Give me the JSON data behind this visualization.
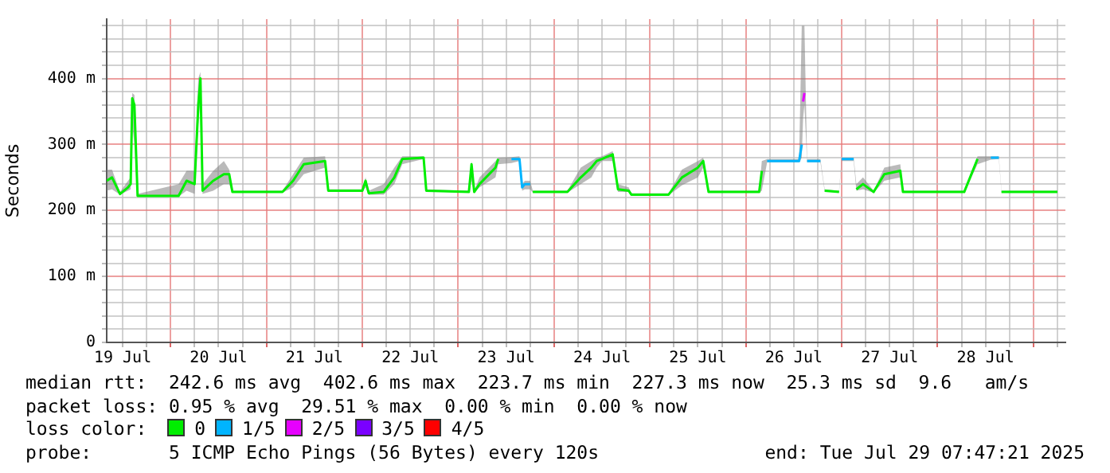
{
  "chart_data": {
    "type": "line",
    "ylabel": "Seconds",
    "legend_title": "loss color:",
    "legend": "bottom",
    "grid": true,
    "line_style": "solid",
    "xlim": [
      "2025-07-19T08:00",
      "2025-07-29T08:00"
    ],
    "xticks": [
      {
        "value": "2025-07-19T12:00",
        "label": "19 Jul"
      },
      {
        "value": "2025-07-19T18:00",
        "label": null
      },
      {
        "value": "2025-07-20T00:00",
        "label": null
      },
      {
        "value": "2025-07-20T06:00",
        "label": null
      },
      {
        "value": "2025-07-20T12:00",
        "label": "20 Jul"
      },
      {
        "value": "2025-07-20T18:00",
        "label": null
      },
      {
        "value": "2025-07-21T00:00",
        "label": null
      },
      {
        "value": "2025-07-21T06:00",
        "label": null
      },
      {
        "value": "2025-07-21T12:00",
        "label": "21 Jul"
      },
      {
        "value": "2025-07-21T18:00",
        "label": null
      },
      {
        "value": "2025-07-22T00:00",
        "label": null
      },
      {
        "value": "2025-07-22T06:00",
        "label": null
      },
      {
        "value": "2025-07-22T12:00",
        "label": "22 Jul"
      },
      {
        "value": "2025-07-22T18:00",
        "label": null
      },
      {
        "value": "2025-07-23T00:00",
        "label": null
      },
      {
        "value": "2025-07-23T06:00",
        "label": null
      },
      {
        "value": "2025-07-23T12:00",
        "label": "23 Jul"
      },
      {
        "value": "2025-07-23T18:00",
        "label": null
      },
      {
        "value": "2025-07-24T00:00",
        "label": null
      },
      {
        "value": "2025-07-24T06:00",
        "label": null
      },
      {
        "value": "2025-07-24T12:00",
        "label": "24 Jul"
      },
      {
        "value": "2025-07-24T18:00",
        "label": null
      },
      {
        "value": "2025-07-25T00:00",
        "label": null
      },
      {
        "value": "2025-07-25T06:00",
        "label": null
      },
      {
        "value": "2025-07-25T12:00",
        "label": "25 Jul"
      },
      {
        "value": "2025-07-25T18:00",
        "label": null
      },
      {
        "value": "2025-07-26T00:00",
        "label": null
      },
      {
        "value": "2025-07-26T06:00",
        "label": null
      },
      {
        "value": "2025-07-26T12:00",
        "label": "26 Jul"
      },
      {
        "value": "2025-07-26T18:00",
        "label": null
      },
      {
        "value": "2025-07-27T00:00",
        "label": null
      },
      {
        "value": "2025-07-27T06:00",
        "label": null
      },
      {
        "value": "2025-07-27T12:00",
        "label": "27 Jul"
      },
      {
        "value": "2025-07-27T18:00",
        "label": null
      },
      {
        "value": "2025-07-28T00:00",
        "label": null
      },
      {
        "value": "2025-07-28T06:00",
        "label": null
      },
      {
        "value": "2025-07-28T12:00",
        "label": "28 Jul"
      },
      {
        "value": "2025-07-28T18:00",
        "label": null
      },
      {
        "value": "2025-07-29T00:00",
        "label": null
      },
      {
        "value": "2025-07-29T06:00",
        "label": null
      }
    ],
    "ylim": [
      0,
      490
    ],
    "yticks": [
      0,
      {
        "value": 20,
        "label": null
      },
      {
        "value": 40,
        "label": null
      },
      {
        "value": 60,
        "label": null
      },
      {
        "value": 80,
        "label": null
      },
      {
        "value": 100,
        "label": "100 m"
      },
      {
        "value": 120,
        "label": null
      },
      {
        "value": 140,
        "label": null
      },
      {
        "value": 160,
        "label": null
      },
      {
        "value": 180,
        "label": null
      },
      {
        "value": 200,
        "label": "200 m"
      },
      {
        "value": 220,
        "label": null
      },
      {
        "value": 240,
        "label": null
      },
      {
        "value": 260,
        "label": null
      },
      {
        "value": 280,
        "label": null
      },
      {
        "value": 300,
        "label": "300 m"
      },
      {
        "value": 320,
        "label": null
      },
      {
        "value": 340,
        "label": null
      },
      {
        "value": 360,
        "label": null
      },
      {
        "value": 380,
        "label": null
      },
      {
        "value": 400,
        "label": "400 m"
      },
      {
        "value": 420,
        "label": null
      },
      {
        "value": 440,
        "label": null
      },
      {
        "value": 460,
        "label": null
      },
      {
        "value": 480,
        "label": null
      }
    ],
    "x": [
      "2025-07-19T08:00",
      "2025-07-19T09:20",
      "2025-07-19T11:20",
      "2025-07-19T13:20",
      "2025-07-19T14:00",
      "2025-07-19T14:24",
      "2025-07-19T14:56",
      "2025-07-19T15:44",
      "2025-07-20T02:00",
      "2025-07-20T04:00",
      "2025-07-20T06:00",
      "2025-07-20T06:56",
      "2025-07-20T07:28",
      "2025-07-20T08:00",
      "2025-07-20T10:40",
      "2025-07-20T13:20",
      "2025-07-20T14:40",
      "2025-07-20T15:28",
      "2025-07-21T04:00",
      "2025-07-21T06:40",
      "2025-07-21T09:20",
      "2025-07-21T14:40",
      "2025-07-21T15:28",
      "2025-07-22T00:00",
      "2025-07-22T00:48",
      "2025-07-22T01:36",
      "2025-07-22T05:20",
      "2025-07-22T08:00",
      "2025-07-22T10:00",
      "2025-07-22T15:20",
      "2025-07-22T16:00",
      "2025-07-23T02:40",
      "2025-07-23T03:20",
      "2025-07-23T04:00",
      "2025-07-23T05:20",
      "2025-07-23T09:20",
      "2025-07-23T10:00",
      "2025-07-23T13:20",
      "2025-07-23T15:20",
      "2025-07-23T16:00",
      "2025-07-23T16:40",
      "2025-07-23T18:00",
      "2025-07-23T18:40",
      "2025-07-24T03:20",
      "2025-07-24T06:40",
      "2025-07-24T09:20",
      "2025-07-24T10:40",
      "2025-07-24T12:00",
      "2025-07-24T14:40",
      "2025-07-24T16:00",
      "2025-07-24T18:40",
      "2025-07-24T19:20",
      "2025-07-25T04:40",
      "2025-07-25T08:00",
      "2025-07-25T12:00",
      "2025-07-25T13:20",
      "2025-07-25T14:40",
      "2025-07-26T03:20",
      "2025-07-26T04:00",
      "2025-07-26T05:20",
      "2025-07-26T13:20",
      "2025-07-26T14:00",
      "2025-07-26T14:20",
      "2025-07-26T14:40",
      "2025-07-26T15:20",
      "2025-07-26T18:40",
      "2025-07-26T19:44",
      "2025-07-26T23:20",
      "2025-07-27T00:00",
      "2025-07-27T03:00",
      "2025-07-27T03:40",
      "2025-07-27T05:20",
      "2025-07-27T08:00",
      "2025-07-27T10:40",
      "2025-07-27T14:40",
      "2025-07-27T15:20",
      "2025-07-28T06:40",
      "2025-07-28T10:00",
      "2025-07-28T13:20",
      "2025-07-28T15:20",
      "2025-07-28T16:00",
      "2025-07-29T06:00"
    ],
    "series": [
      {
        "name": "0",
        "color": "#00ee00",
        "values": [
          245,
          250,
          225,
          235,
          240,
          370,
          360,
          222,
          222,
          245,
          240,
          360,
          400,
          230,
          245,
          255,
          255,
          228,
          228,
          245,
          270,
          275,
          230,
          230,
          245,
          226,
          228,
          250,
          278,
          280,
          230,
          228,
          270,
          228,
          240,
          265,
          278,
          null,
          null,
          null,
          null,
          null,
          228,
          228,
          250,
          265,
          275,
          278,
          285,
          232,
          230,
          224,
          224,
          250,
          265,
          275,
          228,
          228,
          260,
          null,
          null,
          null,
          null,
          null,
          null,
          null,
          230,
          228,
          null,
          null,
          232,
          240,
          228,
          255,
          260,
          228,
          228,
          278,
          null,
          null,
          228,
          228
        ],
        "lower": [
          230,
          232,
          224,
          230,
          232,
          330,
          300,
          221,
          221,
          230,
          225,
          330,
          370,
          225,
          230,
          240,
          240,
          227,
          227,
          235,
          255,
          265,
          229,
          229,
          235,
          224,
          224,
          240,
          270,
          278,
          229,
          227,
          245,
          227,
          235,
          250,
          270,
          272,
          275,
          230,
          232,
          232,
          227,
          227,
          240,
          250,
          265,
          275,
          275,
          228,
          228,
          223,
          223,
          238,
          250,
          265,
          227,
          227,
          230,
          273,
          273,
          280,
          340,
          360,
          273,
          273,
          229,
          227,
          275,
          275,
          230,
          232,
          227,
          245,
          250,
          227,
          227,
          270,
          277,
          278,
          227,
          227
        ],
        "upper": [
          262,
          262,
          228,
          245,
          250,
          378,
          375,
          225,
          240,
          260,
          260,
          400,
          410,
          240,
          260,
          275,
          262,
          230,
          230,
          255,
          280,
          282,
          232,
          232,
          250,
          230,
          240,
          265,
          282,
          282,
          232,
          230,
          275,
          230,
          250,
          275,
          280,
          281,
          282,
          240,
          245,
          245,
          230,
          230,
          265,
          275,
          280,
          282,
          290,
          240,
          235,
          226,
          226,
          262,
          275,
          280,
          230,
          230,
          275,
          278,
          278,
          480,
          480,
          480,
          278,
          278,
          232,
          230,
          280,
          280,
          240,
          250,
          230,
          265,
          270,
          230,
          230,
          282,
          282,
          282,
          230,
          230
        ]
      },
      {
        "name": "1/5",
        "color": "#00b4ff",
        "values": [
          null,
          null,
          null,
          null,
          null,
          null,
          null,
          null,
          null,
          null,
          null,
          null,
          null,
          null,
          null,
          null,
          null,
          null,
          null,
          null,
          null,
          null,
          null,
          null,
          null,
          null,
          null,
          null,
          null,
          null,
          null,
          null,
          null,
          null,
          null,
          null,
          null,
          278,
          278,
          235,
          240,
          240,
          null,
          null,
          null,
          null,
          null,
          null,
          null,
          null,
          null,
          null,
          null,
          null,
          null,
          null,
          null,
          null,
          null,
          275,
          275,
          300,
          null,
          null,
          275,
          275,
          null,
          null,
          278,
          278,
          null,
          null,
          null,
          null,
          null,
          null,
          null,
          null,
          280,
          280,
          null,
          null
        ]
      },
      {
        "name": "2/5",
        "color": "#e600ff",
        "values": [
          null,
          null,
          null,
          null,
          null,
          null,
          null,
          null,
          null,
          null,
          null,
          null,
          null,
          null,
          null,
          null,
          null,
          null,
          null,
          null,
          null,
          null,
          null,
          null,
          null,
          null,
          null,
          null,
          null,
          null,
          null,
          null,
          null,
          null,
          null,
          null,
          null,
          null,
          null,
          null,
          null,
          null,
          null,
          null,
          null,
          null,
          null,
          null,
          null,
          null,
          null,
          null,
          null,
          null,
          null,
          null,
          null,
          null,
          null,
          null,
          null,
          null,
          365,
          378,
          null,
          null,
          null,
          null,
          null,
          null,
          null,
          null,
          null,
          null,
          null,
          null,
          null,
          null,
          null,
          null,
          null,
          null
        ]
      },
      {
        "name": "3/5",
        "color": "#7a00ff",
        "values": [
          null,
          null,
          null,
          null,
          null,
          null,
          null,
          null,
          null,
          null,
          null,
          null,
          null,
          null,
          null,
          null,
          null,
          null,
          null,
          null,
          null,
          null,
          null,
          null,
          null,
          null,
          null,
          null,
          null,
          null,
          null,
          null,
          null,
          null,
          null,
          null,
          null,
          null,
          null,
          null,
          null,
          null,
          null,
          null,
          null,
          null,
          null,
          null,
          null,
          null,
          null,
          null,
          null,
          null,
          null,
          null,
          null,
          null,
          null,
          null,
          null,
          null,
          null,
          null,
          null,
          null,
          null,
          null,
          null,
          null,
          null,
          null,
          null,
          null,
          null,
          null,
          null,
          null,
          null,
          null,
          null,
          null
        ]
      },
      {
        "name": "4/5",
        "color": "#ff0000",
        "values": [
          null,
          null,
          null,
          null,
          null,
          null,
          null,
          null,
          null,
          null,
          null,
          null,
          null,
          null,
          null,
          null,
          null,
          null,
          null,
          null,
          null,
          null,
          null,
          null,
          null,
          null,
          null,
          null,
          null,
          null,
          null,
          null,
          null,
          null,
          null,
          null,
          null,
          null,
          null,
          null,
          null,
          null,
          null,
          null,
          null,
          null,
          null,
          null,
          null,
          null,
          null,
          null,
          null,
          null,
          null,
          null,
          null,
          null,
          null,
          null,
          null,
          null,
          null,
          null,
          null,
          null,
          null,
          null,
          null,
          null,
          null,
          null,
          null,
          null,
          null,
          null,
          null,
          null,
          null,
          null,
          null,
          null
        ]
      }
    ],
    "annotations": [
      "median rtt:  242.6 ms avg  402.6 ms max  223.7 ms min  227.3 ms now  25.3 ms sd  9.6   am/s",
      "packet loss: 0.95 % avg  29.51 % max  0.00 % min  0.00 % now",
      "probe:       5 ICMP Echo Pings (56 Bytes) every 120s",
      "end: Tue Jul 29 07:47:21 2025"
    ]
  }
}
